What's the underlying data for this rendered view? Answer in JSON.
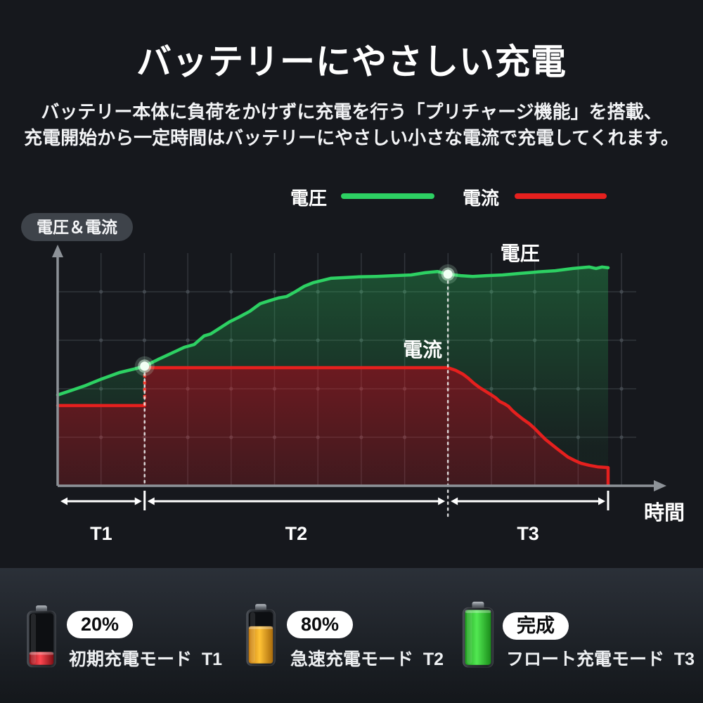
{
  "page": {
    "title": "バッテリーにやさしい充電",
    "subtitle_line1": "バッテリー本体に負荷をかけずに充電を行う「プリチャージ機能」を搭載、",
    "subtitle_line2": "充電開始から一定時間はバッテリーにやさしい小さな電流で充電してくれます。"
  },
  "legend": {
    "voltage_label": "電圧",
    "current_label": "電流"
  },
  "chart": {
    "y_axis_badge": "電圧＆電流"
  },
  "chart_data": {
    "type": "line",
    "title": "",
    "xlabel": "時間",
    "ylabel": "電圧＆電流",
    "x_range": [
      0,
      100
    ],
    "y_range": [
      0,
      100
    ],
    "grid": true,
    "legend_position": "top",
    "phases": [
      {
        "label": "T1",
        "x_start": 0,
        "x_end": 15.8
      },
      {
        "label": "T2",
        "x_start": 15.8,
        "x_end": 70.9
      },
      {
        "label": "T3",
        "x_start": 70.9,
        "x_end": 100
      }
    ],
    "series": [
      {
        "name": "電圧",
        "color": "#2dd163",
        "annotation": {
          "label": "電圧",
          "x": 84,
          "y": 94.3
        },
        "points": [
          [
            0,
            36.9
          ],
          [
            2.3,
            38.6
          ],
          [
            4.9,
            40.6
          ],
          [
            8,
            43.4
          ],
          [
            11.2,
            46
          ],
          [
            13.8,
            47.4
          ],
          [
            15.8,
            48.6
          ],
          [
            18.3,
            51.4
          ],
          [
            20.8,
            54
          ],
          [
            23,
            56.3
          ],
          [
            24.8,
            57.4
          ],
          [
            26.6,
            60.9
          ],
          [
            27.8,
            61.7
          ],
          [
            29.4,
            64
          ],
          [
            31.2,
            66.6
          ],
          [
            33,
            68.6
          ],
          [
            34.9,
            70.9
          ],
          [
            36.8,
            74
          ],
          [
            38.3,
            75.1
          ],
          [
            40.1,
            76.3
          ],
          [
            41.6,
            76.9
          ],
          [
            43.2,
            78.9
          ],
          [
            44.8,
            81.1
          ],
          [
            46.5,
            82.6
          ],
          [
            48,
            83.4
          ],
          [
            49.6,
            84.3
          ],
          [
            52.1,
            84.6
          ],
          [
            54.7,
            84.9
          ],
          [
            57.9,
            85.1
          ],
          [
            61,
            85.4
          ],
          [
            64.2,
            85.7
          ],
          [
            66.8,
            86.6
          ],
          [
            69,
            87.1
          ],
          [
            70.9,
            86
          ],
          [
            73.2,
            85.4
          ],
          [
            75.4,
            85.1
          ],
          [
            77.9,
            85.4
          ],
          [
            80.8,
            85.7
          ],
          [
            84,
            86.3
          ],
          [
            87.2,
            86.9
          ],
          [
            90.4,
            87.4
          ],
          [
            93.6,
            88.3
          ],
          [
            96.6,
            88.9
          ],
          [
            97.8,
            88.3
          ],
          [
            98.9,
            88.9
          ],
          [
            100,
            88.6
          ]
        ]
      },
      {
        "name": "電流",
        "color": "#e6201e",
        "annotation": {
          "label": "電流",
          "x": 66.3,
          "y": 55.1
        },
        "segments": [
          {
            "points": [
              [
                0,
                32.6
              ],
              [
                15.8,
                32.6
              ]
            ]
          },
          {
            "points": [
              [
                15.8,
                48
              ],
              [
                70.9,
                48
              ],
              [
                72.3,
                46.9
              ],
              [
                73.6,
                45.4
              ],
              [
                74.6,
                43.7
              ],
              [
                75.6,
                41.7
              ],
              [
                76.6,
                40
              ],
              [
                77.6,
                38.6
              ],
              [
                78.7,
                37.1
              ],
              [
                79.6,
                35.7
              ],
              [
                80.3,
                34.3
              ],
              [
                81.1,
                33.4
              ],
              [
                81.9,
                32.3
              ],
              [
                82.6,
                30.6
              ],
              [
                83.5,
                28.9
              ],
              [
                84.5,
                27.1
              ],
              [
                85.6,
                25.4
              ],
              [
                86.6,
                23.4
              ],
              [
                87.6,
                21.1
              ],
              [
                88.6,
                18.9
              ],
              [
                89.7,
                16.9
              ],
              [
                90.7,
                15.1
              ],
              [
                91.7,
                13.4
              ],
              [
                92.7,
                11.7
              ],
              [
                93.9,
                10.3
              ],
              [
                95.1,
                9.1
              ],
              [
                96.6,
                8.3
              ],
              [
                98.1,
                7.7
              ],
              [
                100,
                7.4
              ]
            ]
          }
        ],
        "step_dashed": [
          [
            15.8,
            32.6
          ],
          [
            15.8,
            48
          ]
        ],
        "end_drop": [
          [
            100,
            7.4
          ],
          [
            100,
            0
          ]
        ]
      }
    ],
    "markers": [
      {
        "series": "電圧",
        "x": 15.8,
        "y": 48.6
      },
      {
        "series": "電圧",
        "x": 70.9,
        "y": 86
      }
    ]
  },
  "modes": [
    {
      "badge": "20%",
      "label": "初期充電モード  T1",
      "battery_level": 25,
      "battery_gradient": [
        "#8f1118",
        "#ff4750",
        "#7c0e14"
      ]
    },
    {
      "badge": "80%",
      "label": "急速充電モード  T2",
      "battery_level": 72,
      "battery_gradient": [
        "#c47a10",
        "#ffc235",
        "#a86a0c"
      ]
    },
    {
      "badge": "完成",
      "label": "フロート充電モード  T3",
      "battery_level": 100,
      "battery_gradient": [
        "#1f9e1f",
        "#52e852",
        "#1a8c1a"
      ]
    }
  ],
  "colors": {
    "background": "#16181d",
    "voltage": "#2dd163",
    "current": "#e6201e",
    "grid": "#35393f",
    "axis": "#8d9298",
    "badge_bg": "#3e434a",
    "dashed_guide": "#e8e8e8"
  }
}
